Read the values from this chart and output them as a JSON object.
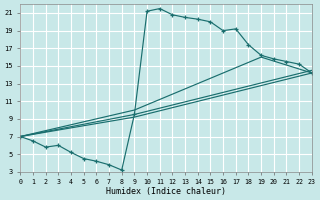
{
  "xlabel": "Humidex (Indice chaleur)",
  "bg_color": "#c8e8e8",
  "grid_color": "#ffffff",
  "line_color": "#1a6e6e",
  "xlim": [
    0,
    23
  ],
  "ylim": [
    3,
    22
  ],
  "xticks": [
    0,
    1,
    2,
    3,
    4,
    5,
    6,
    7,
    8,
    9,
    10,
    11,
    12,
    13,
    14,
    15,
    16,
    17,
    18,
    19,
    20,
    21,
    22,
    23
  ],
  "yticks": [
    3,
    5,
    7,
    9,
    11,
    13,
    15,
    17,
    19,
    21
  ],
  "curve_main_x": [
    0,
    1,
    2,
    3,
    4,
    5,
    6,
    7,
    8,
    9,
    10,
    11,
    12,
    13,
    14,
    15,
    16,
    17,
    18,
    19,
    20,
    21,
    22,
    23
  ],
  "curve_main_y": [
    7.0,
    6.5,
    5.8,
    6.0,
    5.2,
    4.5,
    4.2,
    3.8,
    3.2,
    9.5,
    21.2,
    21.5,
    20.8,
    20.5,
    20.3,
    20.0,
    19.0,
    19.2,
    17.4,
    16.2,
    15.8,
    15.5,
    15.2,
    14.2
  ],
  "line1_x": [
    0,
    9,
    23
  ],
  "line1_y": [
    7.0,
    9.2,
    14.2
  ],
  "line2_x": [
    0,
    9,
    23
  ],
  "line2_y": [
    7.0,
    9.5,
    14.5
  ],
  "line3_x": [
    0,
    9,
    19,
    23
  ],
  "line3_y": [
    7.0,
    10.0,
    16.0,
    14.2
  ]
}
